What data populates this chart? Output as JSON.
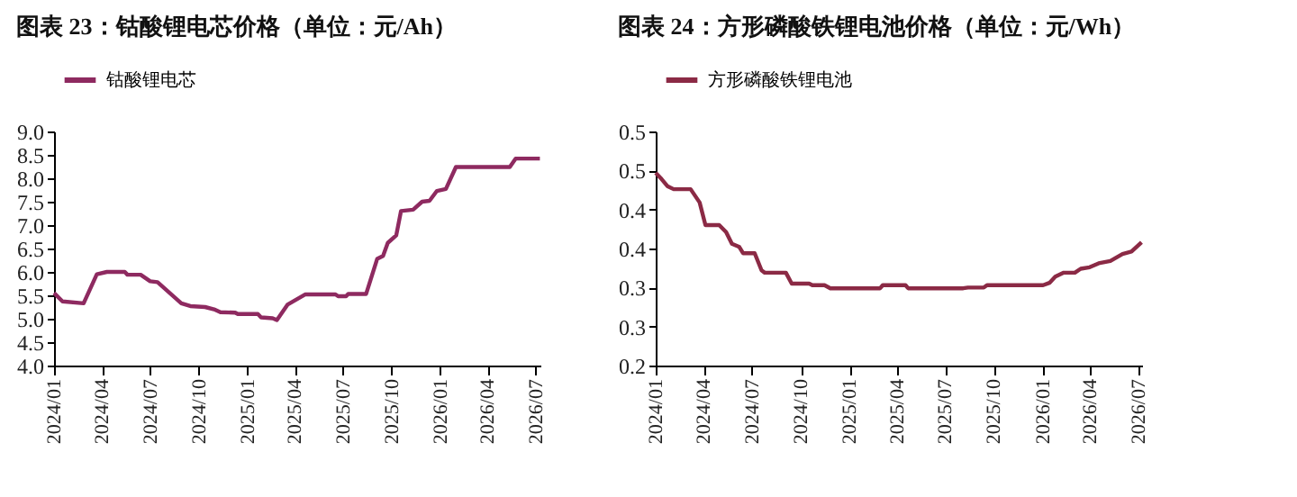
{
  "chart_data": [
    {
      "type": "line",
      "title": "图表 23：钴酸锂电芯价格（单位：元/Ah）",
      "legend": "top",
      "line_style": "solid",
      "grid": false,
      "x": [
        "2024-01-01",
        "2024-01-17",
        "2024-02-26",
        "2024-03-22",
        "2024-04-10",
        "2024-05-14",
        "2024-05-19",
        "2024-06-13",
        "2024-07-01",
        "2024-07-15",
        "2024-08-29",
        "2024-09-15",
        "2024-10-13",
        "2024-10-30",
        "2024-11-11",
        "2024-12-09",
        "2024-12-14",
        "2025-01-21",
        "2025-01-27",
        "2025-02-18",
        "2025-02-26",
        "2025-03-18",
        "2025-04-21",
        "2025-06-17",
        "2025-06-22",
        "2025-07-07",
        "2025-07-11",
        "2025-08-14",
        "2025-09-04",
        "2025-09-15",
        "2025-09-24",
        "2025-10-10",
        "2025-10-19",
        "2025-11-11",
        "2025-11-28",
        "2025-12-12",
        "2025-12-26",
        "2026-01-12",
        "2026-01-31",
        "2026-05-13",
        "2026-05-24",
        "2026-07-09"
      ],
      "series": [
        {
          "name": "钴酸锂电芯",
          "color": "#8e2a60",
          "values": [
            5.55,
            5.37,
            5.33,
            5.95,
            6.0,
            6.0,
            5.94,
            5.94,
            5.8,
            5.78,
            5.33,
            5.27,
            5.25,
            5.2,
            5.14,
            5.13,
            5.1,
            5.1,
            5.03,
            5.01,
            4.97,
            5.3,
            5.52,
            5.52,
            5.48,
            5.48,
            5.53,
            5.53,
            6.28,
            6.34,
            6.62,
            6.78,
            7.3,
            7.33,
            7.5,
            7.52,
            7.73,
            7.77,
            8.24,
            8.24,
            8.42,
            8.42
          ]
        }
      ],
      "xlim": [
        "2024-01-01",
        "2026-07-10"
      ],
      "xticks": [
        {
          "value": "2024-01",
          "label": "2024/01"
        },
        {
          "value": "2024-04",
          "label": "2024/04"
        },
        {
          "value": "2024-07",
          "label": "2024/07"
        },
        {
          "value": "2024-10",
          "label": "2024/10"
        },
        {
          "value": "2025-01",
          "label": "2025/01"
        },
        {
          "value": "2025-04",
          "label": "2025/04"
        },
        {
          "value": "2025-07",
          "label": "2025/07"
        },
        {
          "value": "2025-10",
          "label": "2025/10"
        },
        {
          "value": "2026-01",
          "label": "2026/01"
        },
        {
          "value": "2026-04",
          "label": "2026/04"
        },
        {
          "value": "2026-07",
          "label": "2026/07"
        }
      ],
      "ylim": [
        4,
        9
      ],
      "yticks": [
        {
          "value": 4,
          "label": "4.0"
        },
        {
          "value": 4.5,
          "label": "4.5"
        },
        {
          "value": 5,
          "label": "5.0"
        },
        {
          "value": 5.5,
          "label": "5.5"
        },
        {
          "value": 6,
          "label": "6.0"
        },
        {
          "value": 6.5,
          "label": "6.5"
        },
        {
          "value": 7,
          "label": "7.0"
        },
        {
          "value": 7.5,
          "label": "7.5"
        },
        {
          "value": 8,
          "label": "8.0"
        },
        {
          "value": 8.5,
          "label": "8.5"
        },
        {
          "value": 9,
          "label": "9.0"
        }
      ]
    },
    {
      "type": "line",
      "title": "图表 24：方形磷酸铁锂电池价格（单位：元/Wh）",
      "legend": "top",
      "line_style": "solid",
      "grid": false,
      "x": [
        "2024-01-01",
        "2024-01-12",
        "2024-01-23",
        "2024-02-04",
        "2024-03-07",
        "2024-03-24",
        "2024-04-04",
        "2024-04-30",
        "2024-05-13",
        "2024-05-24",
        "2024-06-07",
        "2024-06-14",
        "2024-07-06",
        "2024-07-19",
        "2024-07-25",
        "2024-09-03",
        "2024-09-14",
        "2024-10-17",
        "2024-10-23",
        "2024-11-15",
        "2024-11-26",
        "2025-02-28",
        "2025-03-05",
        "2025-04-17",
        "2025-04-22",
        "2025-08-04",
        "2025-08-13",
        "2025-09-12",
        "2025-09-18",
        "2026-01-02",
        "2026-01-14",
        "2026-01-25",
        "2026-02-10",
        "2026-03-03",
        "2026-03-14",
        "2026-03-31",
        "2026-04-17",
        "2026-05-09",
        "2026-06-01",
        "2026-06-18",
        "2026-07-07"
      ],
      "series": [
        {
          "name": "方形磷酸铁锂电池",
          "color": "#8b2a45",
          "values": [
            0.447,
            0.439,
            0.43,
            0.426,
            0.426,
            0.409,
            0.38,
            0.38,
            0.371,
            0.356,
            0.352,
            0.344,
            0.344,
            0.322,
            0.319,
            0.319,
            0.305,
            0.305,
            0.303,
            0.303,
            0.299,
            0.299,
            0.303,
            0.303,
            0.299,
            0.299,
            0.3,
            0.3,
            0.303,
            0.303,
            0.306,
            0.314,
            0.319,
            0.319,
            0.324,
            0.326,
            0.331,
            0.334,
            0.343,
            0.346,
            0.358
          ]
        }
      ],
      "xlim": [
        "2024-01-01",
        "2026-07-08"
      ],
      "xticks": [
        {
          "value": "2024-01",
          "label": "2024/01"
        },
        {
          "value": "2024-04",
          "label": "2024/04"
        },
        {
          "value": "2024-07",
          "label": "2024/07"
        },
        {
          "value": "2024-10",
          "label": "2024/10"
        },
        {
          "value": "2025-01",
          "label": "2025/01"
        },
        {
          "value": "2025-04",
          "label": "2025/04"
        },
        {
          "value": "2025-07",
          "label": "2025/07"
        },
        {
          "value": "2025-10",
          "label": "2025/10"
        },
        {
          "value": "2026-01",
          "label": "2026/01"
        },
        {
          "value": "2026-04",
          "label": "2026/04"
        },
        {
          "value": "2026-07",
          "label": "2026/07"
        }
      ],
      "ylim": [
        0.2,
        0.5
      ],
      "yticks": [
        {
          "value": 0.2,
          "label": "0.2"
        },
        {
          "value": 0.25,
          "label": "0.3"
        },
        {
          "value": 0.3,
          "label": "0.3"
        },
        {
          "value": 0.35,
          "label": "0.4"
        },
        {
          "value": 0.4,
          "label": "0.4"
        },
        {
          "value": 0.45,
          "label": "0.5"
        },
        {
          "value": 0.5,
          "label": "0.5"
        }
      ]
    }
  ]
}
